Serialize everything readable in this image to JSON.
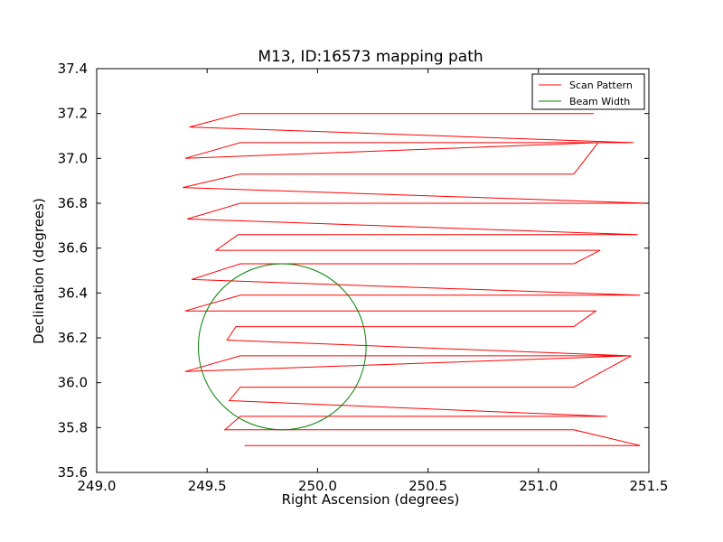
{
  "chart_data": {
    "type": "line",
    "title": "M13, ID:16573 mapping path",
    "xlabel": "Right Ascension (degrees)",
    "ylabel": "Declination (degrees)",
    "xlim": [
      249.0,
      251.5
    ],
    "ylim": [
      35.6,
      37.4
    ],
    "xticks": [
      "249.0",
      "249.5",
      "250.0",
      "250.5",
      "251.0",
      "251.5"
    ],
    "yticks": [
      "35.6",
      "35.8",
      "36.0",
      "36.2",
      "36.4",
      "36.6",
      "36.8",
      "37.0",
      "37.2",
      "37.4"
    ],
    "grid": false,
    "legend_position": "top-right",
    "series": [
      {
        "name": "Scan Pattern",
        "color": "#ff0000",
        "x": [
          249.67,
          250.5,
          251.46,
          251.16,
          249.58,
          249.65,
          251.16,
          251.31,
          249.6,
          249.65,
          251.16,
          251.42,
          249.4,
          249.65,
          251.16,
          251.41,
          249.59,
          249.63,
          251.16,
          251.26,
          249.4,
          249.65,
          251.16,
          251.46,
          249.43,
          249.65,
          251.16,
          251.28,
          249.54,
          249.64,
          251.16,
          251.45,
          249.41,
          249.65,
          251.16,
          251.5,
          249.39,
          249.65,
          251.16,
          251.27,
          249.4,
          249.65,
          251.16,
          251.43,
          249.42,
          249.65,
          250.5,
          251.25
        ],
        "y": [
          35.72,
          35.72,
          35.72,
          35.79,
          35.79,
          35.85,
          35.85,
          35.85,
          35.92,
          35.98,
          35.98,
          36.12,
          36.05,
          36.12,
          36.12,
          36.12,
          36.19,
          36.25,
          36.25,
          36.32,
          36.32,
          36.39,
          36.39,
          36.39,
          36.46,
          36.53,
          36.53,
          36.59,
          36.59,
          36.66,
          36.66,
          36.66,
          36.73,
          36.8,
          36.8,
          36.8,
          36.87,
          36.93,
          36.93,
          37.07,
          37.0,
          37.07,
          37.07,
          37.07,
          37.14,
          37.2,
          37.2,
          37.2
        ]
      },
      {
        "name": "Beam Width",
        "color": "#008000",
        "shape": "circle",
        "center": [
          249.84,
          36.16
        ],
        "radius_ra": 0.38,
        "radius_dec": 0.37
      }
    ]
  }
}
